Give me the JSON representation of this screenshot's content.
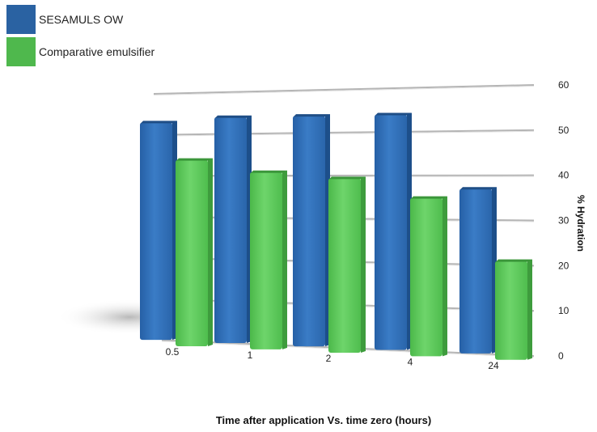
{
  "chart_data": {
    "type": "bar",
    "categories": [
      "0.5",
      "1",
      "2",
      "4",
      "24"
    ],
    "series": [
      {
        "name": "SESAMULS OW",
        "values": [
          53,
          54,
          54,
          54,
          37
        ],
        "color": "#2f6db3"
      },
      {
        "name": "Comparative emulsifier",
        "values": [
          45,
          42,
          40.5,
          36,
          22
        ],
        "color": "#55c454"
      }
    ],
    "title": "",
    "xlabel": "Time after application Vs. time zero (hours)",
    "ylabel": "% Hydration",
    "ylim": [
      0,
      60
    ],
    "yticks": [
      "0",
      "10",
      "20",
      "30",
      "40",
      "50",
      "60"
    ],
    "grid": true,
    "legend_position": "top-left",
    "style": "3d-perspective"
  }
}
